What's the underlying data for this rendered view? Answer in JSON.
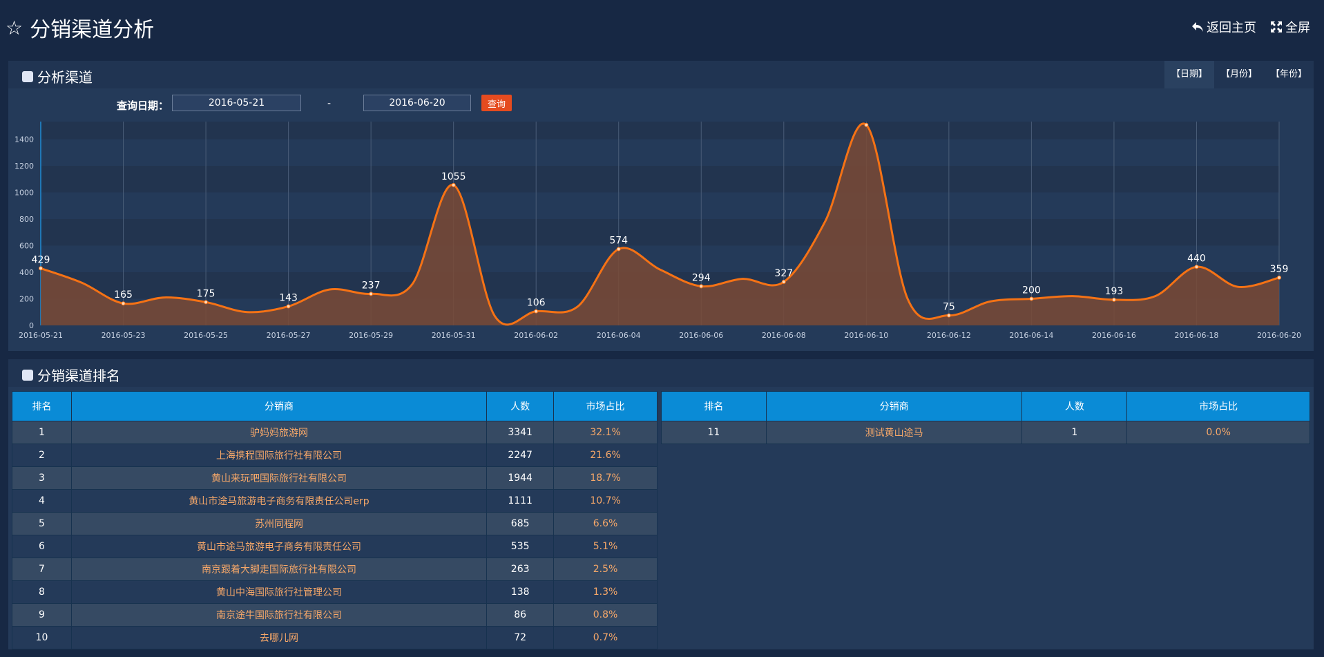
{
  "header": {
    "title": "分销渠道分析",
    "back_label": "返回主页",
    "fullscreen_label": "全屏"
  },
  "channel_panel": {
    "title": "分析渠道",
    "tabs": [
      "【日期】",
      "【月份】",
      "【年份】"
    ],
    "active_tab": 0,
    "query_label": "查询日期：",
    "start_date": "2016-05-21",
    "end_date": "2016-06-20",
    "separator": "-",
    "query_button": "查询"
  },
  "chart_data": {
    "type": "area",
    "xlabel": "",
    "ylabel": "",
    "ylim": [
      0,
      1600
    ],
    "yticks": [
      0,
      200,
      400,
      600,
      800,
      1000,
      1200,
      1400,
      1600
    ],
    "x": [
      "2016-05-21",
      "2016-05-22",
      "2016-05-23",
      "2016-05-24",
      "2016-05-25",
      "2016-05-26",
      "2016-05-27",
      "2016-05-28",
      "2016-05-29",
      "2016-05-30",
      "2016-05-31",
      "2016-06-01",
      "2016-06-02",
      "2016-06-03",
      "2016-06-04",
      "2016-06-05",
      "2016-06-06",
      "2016-06-07",
      "2016-06-08",
      "2016-06-09",
      "2016-06-10",
      "2016-06-11",
      "2016-06-12",
      "2016-06-13",
      "2016-06-14",
      "2016-06-15",
      "2016-06-16",
      "2016-06-17",
      "2016-06-18",
      "2016-06-19",
      "2016-06-20"
    ],
    "x_tick_labels": [
      "2016-05-21",
      "2016-05-23",
      "2016-05-25",
      "2016-05-27",
      "2016-05-29",
      "2016-05-31",
      "2016-06-02",
      "2016-06-04",
      "2016-06-06",
      "2016-06-08",
      "2016-06-10",
      "2016-06-12",
      "2016-06-14",
      "2016-06-16",
      "2016-06-18",
      "2016-06-20"
    ],
    "values": [
      429,
      320,
      165,
      210,
      175,
      100,
      143,
      270,
      237,
      310,
      1055,
      70,
      106,
      140,
      574,
      420,
      294,
      350,
      327,
      780,
      1507,
      200,
      75,
      180,
      200,
      220,
      193,
      220,
      440,
      290,
      359
    ],
    "labeled_values": [
      429,
      165,
      175,
      143,
      237,
      1055,
      106,
      574,
      294,
      327,
      1507,
      75,
      200,
      193,
      440,
      359
    ],
    "grid": true,
    "line_color": "#f57215",
    "fill_color": "#7a4a35"
  },
  "ranking_panel": {
    "title": "分销渠道排名",
    "columns": [
      "排名",
      "分销商",
      "人数",
      "市场占比"
    ],
    "left_rows": [
      [
        "1",
        "驴妈妈旅游网",
        "3341",
        "32.1%"
      ],
      [
        "2",
        "上海携程国际旅行社有限公司",
        "2247",
        "21.6%"
      ],
      [
        "3",
        "黄山来玩吧国际旅行社有限公司",
        "1944",
        "18.7%"
      ],
      [
        "4",
        "黄山市途马旅游电子商务有限责任公司erp",
        "1111",
        "10.7%"
      ],
      [
        "5",
        "苏州同程网",
        "685",
        "6.6%"
      ],
      [
        "6",
        "黄山市途马旅游电子商务有限责任公司",
        "535",
        "5.1%"
      ],
      [
        "7",
        "南京跟着大脚走国际旅行社有限公司",
        "263",
        "2.5%"
      ],
      [
        "8",
        "黄山中海国际旅行社管理公司",
        "138",
        "1.3%"
      ],
      [
        "9",
        "南京途牛国际旅行社有限公司",
        "86",
        "0.8%"
      ],
      [
        "10",
        "去哪儿网",
        "72",
        "0.7%"
      ]
    ],
    "right_rows": [
      [
        "11",
        "测试黄山途马",
        "1",
        "0.0%"
      ]
    ]
  },
  "colors": {
    "background": "#172844",
    "panel": "#243a59",
    "table_header": "#0a8bd6",
    "accent_orange": "#f57215",
    "button_red": "#e54b1f"
  }
}
